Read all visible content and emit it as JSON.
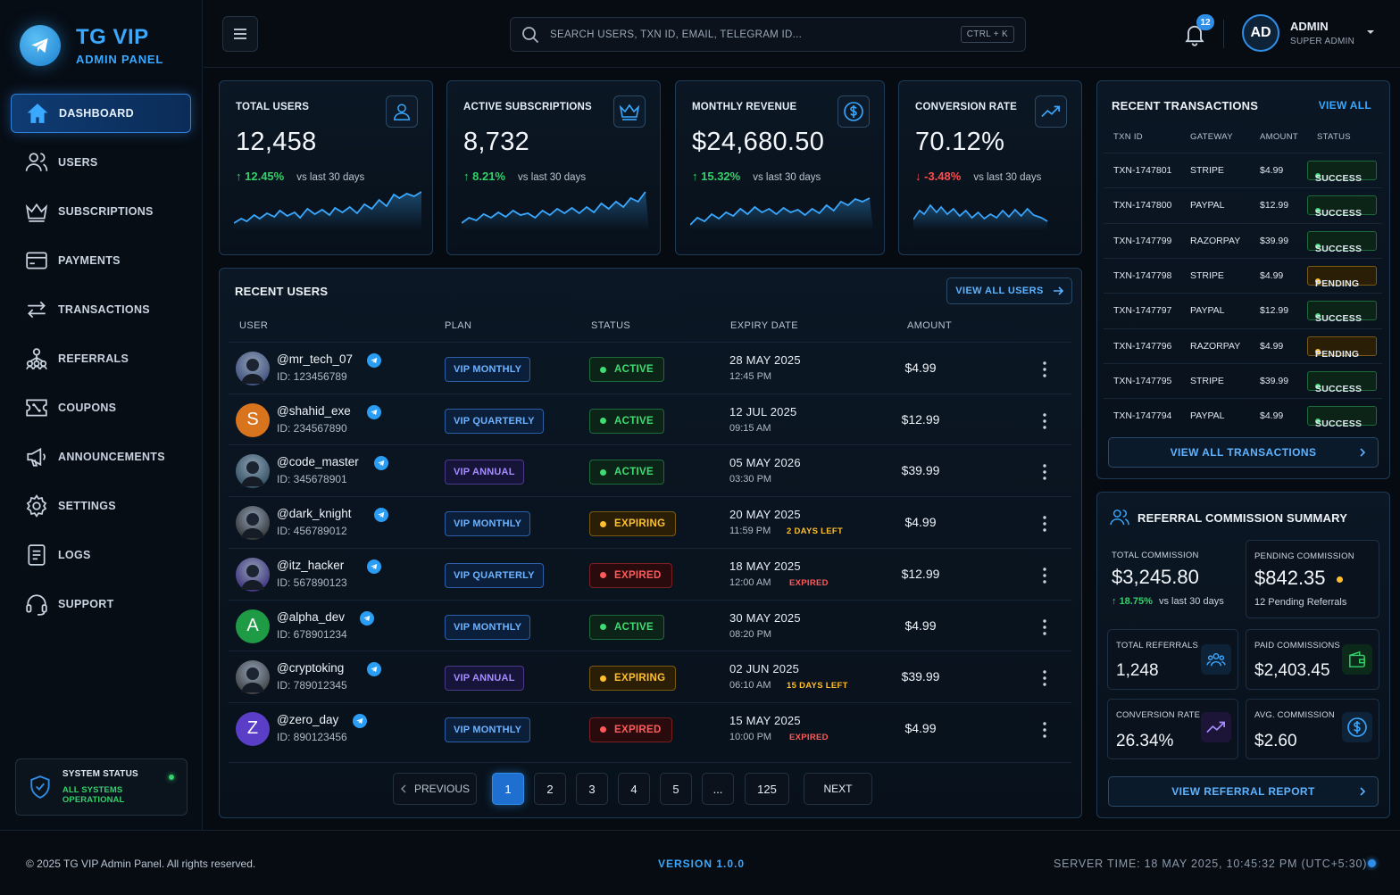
{
  "brand": {
    "name": "TG VIP",
    "subtitle": "ADMIN PANEL"
  },
  "nav": [
    {
      "label": "DASHBOARD",
      "icon": "home-icon",
      "active": true
    },
    {
      "label": "USERS",
      "icon": "users-icon"
    },
    {
      "label": "SUBSCRIPTIONS",
      "icon": "crown-icon"
    },
    {
      "label": "PAYMENTS",
      "icon": "credit-card-icon"
    },
    {
      "label": "TRANSACTIONS",
      "icon": "swap-icon"
    },
    {
      "label": "REFERRALS",
      "icon": "referral-network-icon"
    },
    {
      "label": "COUPONS",
      "icon": "coupon-icon"
    },
    {
      "label": "ANNOUNCEMENTS",
      "icon": "megaphone-icon"
    },
    {
      "label": "SETTINGS",
      "icon": "gear-icon"
    },
    {
      "label": "LOGS",
      "icon": "document-icon"
    },
    {
      "label": "SUPPORT",
      "icon": "headset-icon"
    }
  ],
  "system_status": {
    "title": "SYSTEM STATUS",
    "status": "ALL SYSTEMS OPERATIONAL"
  },
  "topbar": {
    "search_placeholder": "SEARCH USERS, TXN ID, EMAIL, TELEGRAM ID...",
    "shortcut": "CTRL + K",
    "notification_count": "12",
    "admin_initials": "AD",
    "admin_name": "ADMIN",
    "admin_role": "SUPER ADMIN"
  },
  "stats": [
    {
      "title": "TOTAL USERS",
      "value": "12,458",
      "change": "12.45%",
      "direction": "up",
      "vs": "vs last 30 days",
      "icon": "user-icon"
    },
    {
      "title": "ACTIVE SUBSCRIPTIONS",
      "value": "8,732",
      "change": "8.21%",
      "direction": "up",
      "vs": "vs last 30 days",
      "icon": "crown-icon"
    },
    {
      "title": "MONTHLY REVENUE",
      "value": "$24,680.50",
      "change": "15.32%",
      "direction": "up",
      "vs": "vs last 30 days",
      "icon": "dollar-circle-icon"
    },
    {
      "title": "CONVERSION RATE",
      "value": "70.12%",
      "change": "-3.48%",
      "direction": "down",
      "vs": "vs last 30 days",
      "icon": "trending-up-icon"
    }
  ],
  "recent_users": {
    "title": "RECENT USERS",
    "view_all": "VIEW ALL USERS",
    "columns": [
      "USER",
      "PLAN",
      "STATUS",
      "EXPIRY DATE",
      "AMOUNT"
    ],
    "rows": [
      {
        "username": "@mr_tech_07",
        "id": "ID: 123456789",
        "avatar": "photo",
        "avatar_color": "#3b4a7a",
        "plan": "VIP MONTHLY",
        "plan_style": "blue",
        "status": "ACTIVE",
        "status_style": "active",
        "date": "28 MAY 2025",
        "time": "12:45 PM",
        "note": "",
        "amount": "$4.99"
      },
      {
        "username": "@shahid_exe",
        "id": "ID: 234567890",
        "avatar": "S",
        "avatar_color": "#d9741e",
        "plan": "VIP QUARTERLY",
        "plan_style": "blue",
        "status": "ACTIVE",
        "status_style": "active",
        "date": "12 JUL 2025",
        "time": "09:15 AM",
        "note": "",
        "amount": "$12.99"
      },
      {
        "username": "@code_master",
        "id": "ID: 345678901",
        "avatar": "photo",
        "avatar_color": "#2a4a5a",
        "plan": "VIP ANNUAL",
        "plan_style": "purple",
        "status": "ACTIVE",
        "status_style": "active",
        "date": "05 MAY 2026",
        "time": "03:30 PM",
        "note": "",
        "amount": "$39.99"
      },
      {
        "username": "@dark_knight",
        "id": "ID: 456789012",
        "avatar": "photo",
        "avatar_color": "#2c2c2c",
        "plan": "VIP MONTHLY",
        "plan_style": "blue",
        "status": "EXPIRING",
        "status_style": "expiring",
        "date": "20 MAY 2025",
        "time": "11:59 PM",
        "note": "2 DAYS LEFT",
        "note_color": "#ffbf2e",
        "amount": "$4.99"
      },
      {
        "username": "@itz_hacker",
        "id": "ID: 567890123",
        "avatar": "photo",
        "avatar_color": "#3a2a7a",
        "plan": "VIP QUARTERLY",
        "plan_style": "blue",
        "status": "EXPIRED",
        "status_style": "expired",
        "date": "18 MAY 2025",
        "time": "12:00 AM",
        "note": "EXPIRED",
        "note_color": "#ff5a5a",
        "amount": "$12.99"
      },
      {
        "username": "@alpha_dev",
        "id": "ID: 678901234",
        "avatar": "A",
        "avatar_color": "#1f9a45",
        "plan": "VIP MONTHLY",
        "plan_style": "blue",
        "status": "ACTIVE",
        "status_style": "active",
        "date": "30 MAY 2025",
        "time": "08:20 PM",
        "note": "",
        "amount": "$4.99"
      },
      {
        "username": "@cryptoking",
        "id": "ID: 789012345",
        "avatar": "photo",
        "avatar_color": "#3a3a3a",
        "plan": "VIP ANNUAL",
        "plan_style": "purple",
        "status": "EXPIRING",
        "status_style": "expiring",
        "date": "02 JUN 2025",
        "time": "06:10 AM",
        "note": "15 DAYS LEFT",
        "note_color": "#ffbf2e",
        "amount": "$39.99"
      },
      {
        "username": "@zero_day",
        "id": "ID: 890123456",
        "avatar": "Z",
        "avatar_color": "#5a3ec8",
        "plan": "VIP MONTHLY",
        "plan_style": "blue",
        "status": "EXPIRED",
        "status_style": "expired",
        "date": "15 MAY 2025",
        "time": "10:00 PM",
        "note": "EXPIRED",
        "note_color": "#ff5a5a",
        "amount": "$4.99"
      }
    ]
  },
  "pagination": {
    "previous": "PREVIOUS",
    "pages": [
      "1",
      "2",
      "3",
      "4",
      "5",
      "...",
      "125"
    ],
    "current": "1",
    "next": "NEXT"
  },
  "transactions": {
    "title": "RECENT TRANSACTIONS",
    "view_all": "VIEW ALL",
    "columns": [
      "TXN ID",
      "GATEWAY",
      "AMOUNT",
      "STATUS"
    ],
    "rows": [
      {
        "id": "TXN-1747801",
        "gateway": "STRIPE",
        "amount": "$4.99",
        "status": "SUCCESS"
      },
      {
        "id": "TXN-1747800",
        "gateway": "PAYPAL",
        "amount": "$12.99",
        "status": "SUCCESS"
      },
      {
        "id": "TXN-1747799",
        "gateway": "RAZORPAY",
        "amount": "$39.99",
        "status": "SUCCESS"
      },
      {
        "id": "TXN-1747798",
        "gateway": "STRIPE",
        "amount": "$4.99",
        "status": "PENDING"
      },
      {
        "id": "TXN-1747797",
        "gateway": "PAYPAL",
        "amount": "$12.99",
        "status": "SUCCESS"
      },
      {
        "id": "TXN-1747796",
        "gateway": "RAZORPAY",
        "amount": "$4.99",
        "status": "PENDING"
      },
      {
        "id": "TXN-1747795",
        "gateway": "STRIPE",
        "amount": "$39.99",
        "status": "SUCCESS"
      },
      {
        "id": "TXN-1747794",
        "gateway": "PAYPAL",
        "amount": "$4.99",
        "status": "SUCCESS"
      }
    ],
    "view_all_button": "VIEW ALL TRANSACTIONS"
  },
  "referral": {
    "title": "REFERRAL COMMISSION SUMMARY",
    "total_label": "TOTAL COMMISSION",
    "total_value": "$3,245.80",
    "total_change": "18.75%",
    "total_vs": "vs last 30 days",
    "pending_label": "PENDING COMMISSION",
    "pending_value": "$842.35",
    "pending_sub": "12 Pending Referrals",
    "total_referrals_label": "TOTAL REFERRALS",
    "total_referrals_value": "1,248",
    "paid_label": "PAID COMMISSIONS",
    "paid_value": "$2,403.45",
    "conv_label": "CONVERSION RATE",
    "conv_value": "26.34%",
    "avg_label": "AVG. COMMISSION",
    "avg_value": "$2.60",
    "report_button": "VIEW REFERRAL REPORT"
  },
  "footer": {
    "copyright": "© 2025 TG VIP Admin Panel. All rights reserved.",
    "version": "VERSION 1.0.0",
    "server_time": "SERVER TIME: 18 MAY 2025, 10:45:32 PM (UTC+5:30)"
  },
  "colors": {
    "accent": "#2f8fe8",
    "success": "#35d06a",
    "warning": "#ffbf2e",
    "danger": "#ff5a5a"
  }
}
